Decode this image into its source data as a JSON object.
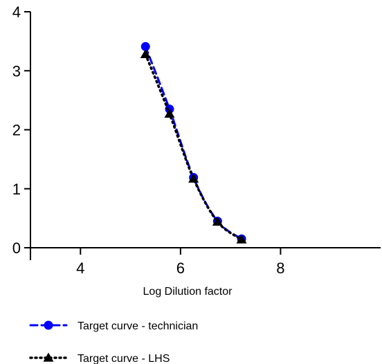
{
  "chart_data": {
    "type": "line",
    "title": "",
    "xlabel": "Log Dilution factor",
    "ylabel": "",
    "xlim": [
      3,
      10
    ],
    "ylim": [
      0,
      4
    ],
    "xticks": [
      4,
      6,
      8
    ],
    "xtick_labels": [
      "4",
      "6",
      "8"
    ],
    "yticks": [
      0,
      1,
      2,
      3,
      4
    ],
    "ytick_labels": [
      "0",
      "1",
      "2",
      "3",
      "4"
    ],
    "grid": false,
    "legend_position": "bottom-left",
    "series": [
      {
        "name": "Target curve - technician",
        "color": "#0000ff",
        "marker": "circle",
        "line_style": "dashed",
        "x": [
          5.3,
          5.78,
          6.26,
          6.74,
          7.22
        ],
        "y": [
          3.41,
          2.35,
          1.19,
          0.45,
          0.15
        ]
      },
      {
        "name": "Target curve - LHS",
        "color": "#000000",
        "marker": "triangle",
        "line_style": "dotted",
        "x": [
          5.3,
          5.78,
          6.26,
          6.74,
          7.22
        ],
        "y": [
          3.28,
          2.27,
          1.17,
          0.44,
          0.14
        ]
      }
    ]
  }
}
